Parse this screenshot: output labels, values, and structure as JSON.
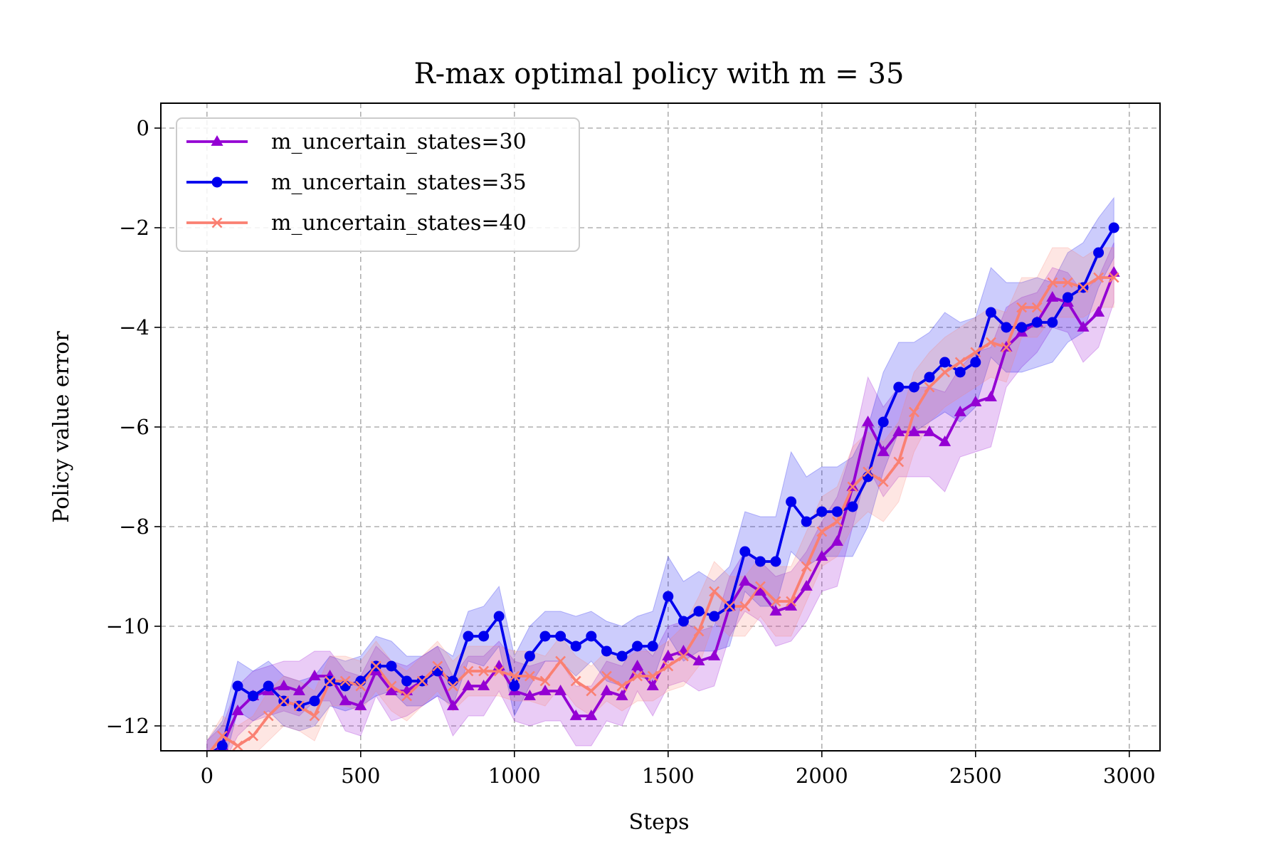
{
  "chart_data": {
    "type": "line",
    "title": "R-max optimal policy with m = 35",
    "xlabel": "Steps",
    "ylabel": "Policy value error",
    "xlim": [
      -150,
      3100
    ],
    "ylim": [
      -12.5,
      0.5
    ],
    "xticks": [
      0,
      500,
      1000,
      1500,
      2000,
      2500,
      3000
    ],
    "yticks": [
      0,
      -2,
      -4,
      -6,
      -8,
      -10,
      -12
    ],
    "xtick_labels": [
      "0",
      "500",
      "1000",
      "1500",
      "2000",
      "2500",
      "3000"
    ],
    "ytick_labels": [
      "0",
      "−2",
      "−4",
      "−6",
      "−8",
      "−10",
      "−12"
    ],
    "grid": true,
    "legend_position": "top-left",
    "x": [
      0,
      50,
      100,
      150,
      200,
      250,
      300,
      350,
      400,
      450,
      500,
      550,
      600,
      650,
      700,
      750,
      800,
      850,
      900,
      950,
      1000,
      1050,
      1100,
      1150,
      1200,
      1250,
      1300,
      1350,
      1400,
      1450,
      1500,
      1550,
      1600,
      1650,
      1700,
      1750,
      1800,
      1850,
      1900,
      1950,
      2000,
      2050,
      2100,
      2150,
      2200,
      2250,
      2300,
      2350,
      2400,
      2450,
      2500,
      2550,
      2600,
      2650,
      2700,
      2750,
      2800,
      2850,
      2900,
      2950
    ],
    "series": [
      {
        "name": "m_uncertain_states=30",
        "color": "#9400d3",
        "marker": "triangle",
        "values": [
          -12.6,
          -12.4,
          -11.7,
          -11.4,
          -11.3,
          -11.2,
          -11.3,
          -11.0,
          -11.0,
          -11.5,
          -11.6,
          -10.9,
          -11.3,
          -11.3,
          -11.1,
          -10.9,
          -11.6,
          -11.2,
          -11.2,
          -10.8,
          -11.3,
          -11.4,
          -11.3,
          -11.3,
          -11.8,
          -11.8,
          -11.3,
          -11.4,
          -10.8,
          -11.2,
          -10.6,
          -10.5,
          -10.7,
          -10.6,
          -9.6,
          -9.1,
          -9.3,
          -9.7,
          -9.6,
          -9.2,
          -8.6,
          -8.3,
          -7.2,
          -5.9,
          -6.5,
          -6.1,
          -6.1,
          -6.1,
          -6.3,
          -5.7,
          -5.5,
          -5.4,
          -4.4,
          -4.1,
          -3.9,
          -3.4,
          -3.5,
          -4.0,
          -3.7,
          -2.9
        ],
        "upper": [
          -12.3,
          -12.0,
          -11.2,
          -10.9,
          -10.8,
          -10.7,
          -10.7,
          -10.5,
          -10.5,
          -10.9,
          -11.0,
          -10.4,
          -10.7,
          -10.8,
          -10.6,
          -10.4,
          -11.0,
          -10.6,
          -10.6,
          -10.3,
          -10.7,
          -10.8,
          -10.7,
          -10.7,
          -11.2,
          -11.2,
          -10.7,
          -10.8,
          -10.3,
          -10.6,
          -10.0,
          -9.9,
          -10.1,
          -10.0,
          -9.0,
          -8.5,
          -8.7,
          -9.0,
          -8.9,
          -8.5,
          -7.9,
          -7.4,
          -6.4,
          -5.0,
          -5.6,
          -5.2,
          -5.2,
          -5.2,
          -5.3,
          -4.8,
          -4.5,
          -4.4,
          -3.6,
          -3.4,
          -3.3,
          -2.8,
          -2.9,
          -3.3,
          -3.0,
          -2.3
        ],
        "lower": [
          -12.9,
          -12.8,
          -12.2,
          -11.9,
          -11.8,
          -11.7,
          -11.8,
          -11.5,
          -11.5,
          -12.1,
          -12.2,
          -11.4,
          -11.9,
          -11.8,
          -11.6,
          -11.4,
          -12.2,
          -11.8,
          -11.8,
          -11.3,
          -11.9,
          -12.0,
          -11.9,
          -11.9,
          -12.4,
          -12.4,
          -11.9,
          -12.0,
          -11.3,
          -11.8,
          -11.2,
          -11.1,
          -11.3,
          -11.2,
          -10.2,
          -9.7,
          -9.9,
          -10.4,
          -10.3,
          -9.9,
          -9.3,
          -9.2,
          -8.0,
          -6.8,
          -7.4,
          -7.0,
          -7.0,
          -7.0,
          -7.3,
          -6.6,
          -6.5,
          -6.4,
          -5.2,
          -4.8,
          -4.5,
          -4.0,
          -4.1,
          -4.7,
          -4.4,
          -3.5
        ]
      },
      {
        "name": "m_uncertain_states=35",
        "color": "#0000ee",
        "marker": "circle",
        "values": [
          -12.6,
          -12.4,
          -11.2,
          -11.4,
          -11.2,
          -11.5,
          -11.6,
          -11.5,
          -11.1,
          -11.2,
          -11.1,
          -10.8,
          -10.8,
          -11.1,
          -11.1,
          -10.9,
          -11.1,
          -10.2,
          -10.2,
          -9.8,
          -11.2,
          -10.6,
          -10.2,
          -10.2,
          -10.4,
          -10.2,
          -10.5,
          -10.6,
          -10.4,
          -10.4,
          -9.4,
          -9.9,
          -9.7,
          -9.8,
          -9.6,
          -8.5,
          -8.7,
          -8.7,
          -7.5,
          -7.9,
          -7.7,
          -7.7,
          -7.6,
          -7.0,
          -5.9,
          -5.2,
          -5.2,
          -5.0,
          -4.7,
          -4.9,
          -4.7,
          -3.7,
          -4.0,
          -4.0,
          -3.9,
          -3.9,
          -3.4,
          -3.2,
          -2.5,
          -2.0
        ],
        "upper": [
          -12.3,
          -11.9,
          -10.7,
          -10.9,
          -10.7,
          -11.0,
          -11.1,
          -11.0,
          -10.6,
          -10.7,
          -10.6,
          -10.2,
          -10.3,
          -10.6,
          -10.6,
          -10.4,
          -10.6,
          -9.7,
          -9.6,
          -9.2,
          -10.6,
          -10.0,
          -9.7,
          -9.7,
          -9.8,
          -9.7,
          -9.9,
          -10.0,
          -9.8,
          -9.7,
          -8.6,
          -9.1,
          -8.9,
          -9.1,
          -8.8,
          -7.7,
          -7.8,
          -7.8,
          -6.5,
          -7.0,
          -6.8,
          -6.8,
          -6.6,
          -6.0,
          -4.9,
          -4.3,
          -4.3,
          -4.1,
          -3.7,
          -3.9,
          -3.8,
          -2.8,
          -3.1,
          -3.1,
          -3.0,
          -3.1,
          -2.5,
          -2.3,
          -1.8,
          -1.4
        ],
        "lower": [
          -12.9,
          -12.9,
          -11.7,
          -11.9,
          -11.7,
          -12.0,
          -12.1,
          -12.0,
          -11.6,
          -11.7,
          -11.6,
          -11.4,
          -11.3,
          -11.6,
          -11.6,
          -11.4,
          -11.6,
          -10.7,
          -10.8,
          -10.4,
          -11.8,
          -11.2,
          -10.7,
          -10.7,
          -11.0,
          -10.7,
          -11.1,
          -11.2,
          -11.0,
          -11.1,
          -10.2,
          -10.7,
          -10.5,
          -10.5,
          -10.4,
          -9.3,
          -9.6,
          -9.6,
          -8.5,
          -8.8,
          -8.6,
          -8.6,
          -8.6,
          -8.0,
          -6.9,
          -6.1,
          -6.1,
          -5.9,
          -5.7,
          -5.9,
          -5.6,
          -4.6,
          -4.9,
          -4.9,
          -4.8,
          -4.7,
          -4.3,
          -4.1,
          -3.2,
          -2.6
        ]
      },
      {
        "name": "m_uncertain_states=40",
        "color": "#fa8072",
        "marker": "x",
        "values": [
          -12.6,
          -12.2,
          -12.4,
          -12.2,
          -11.8,
          -11.5,
          -11.6,
          -11.8,
          -11.1,
          -11.1,
          -11.2,
          -10.8,
          -11.2,
          -11.4,
          -11.1,
          -10.8,
          -11.2,
          -10.9,
          -10.9,
          -10.9,
          -11.0,
          -11.0,
          -11.1,
          -10.7,
          -11.1,
          -11.3,
          -11.0,
          -11.2,
          -11.0,
          -11.0,
          -10.8,
          -10.6,
          -10.1,
          -9.3,
          -9.6,
          -9.6,
          -9.2,
          -9.5,
          -9.5,
          -8.8,
          -8.1,
          -7.9,
          -7.2,
          -6.9,
          -7.1,
          -6.7,
          -5.7,
          -5.2,
          -4.9,
          -4.7,
          -4.5,
          -4.3,
          -4.4,
          -3.6,
          -3.6,
          -3.1,
          -3.1,
          -3.2,
          -3.0,
          -3.0
        ],
        "upper": [
          -12.3,
          -11.8,
          -12.0,
          -11.8,
          -11.3,
          -11.0,
          -11.1,
          -11.3,
          -10.6,
          -10.6,
          -10.7,
          -10.3,
          -10.7,
          -10.9,
          -10.6,
          -10.3,
          -10.7,
          -10.4,
          -10.4,
          -10.4,
          -10.5,
          -10.5,
          -10.6,
          -10.2,
          -10.6,
          -10.8,
          -10.5,
          -10.7,
          -10.5,
          -10.5,
          -10.3,
          -10.0,
          -9.4,
          -8.7,
          -9.0,
          -9.0,
          -8.6,
          -8.8,
          -8.8,
          -8.1,
          -7.4,
          -7.2,
          -6.4,
          -6.1,
          -6.3,
          -5.9,
          -4.9,
          -4.5,
          -4.2,
          -4.0,
          -3.8,
          -3.6,
          -3.7,
          -3.0,
          -3.0,
          -2.4,
          -2.4,
          -2.6,
          -2.4,
          -2.4
        ],
        "lower": [
          -12.9,
          -12.6,
          -12.8,
          -12.6,
          -12.3,
          -12.0,
          -12.1,
          -12.3,
          -11.6,
          -11.6,
          -11.7,
          -11.3,
          -11.7,
          -11.9,
          -11.6,
          -11.3,
          -11.7,
          -11.4,
          -11.4,
          -11.4,
          -11.5,
          -11.5,
          -11.6,
          -11.2,
          -11.6,
          -11.8,
          -11.5,
          -11.7,
          -11.5,
          -11.5,
          -11.3,
          -11.2,
          -10.8,
          -9.9,
          -10.2,
          -10.2,
          -9.8,
          -10.2,
          -10.2,
          -9.5,
          -8.8,
          -8.6,
          -8.0,
          -7.7,
          -7.9,
          -7.5,
          -6.5,
          -5.9,
          -5.6,
          -5.4,
          -5.2,
          -5.0,
          -5.1,
          -4.2,
          -4.2,
          -3.8,
          -3.8,
          -3.8,
          -3.6,
          -3.6
        ]
      }
    ]
  }
}
